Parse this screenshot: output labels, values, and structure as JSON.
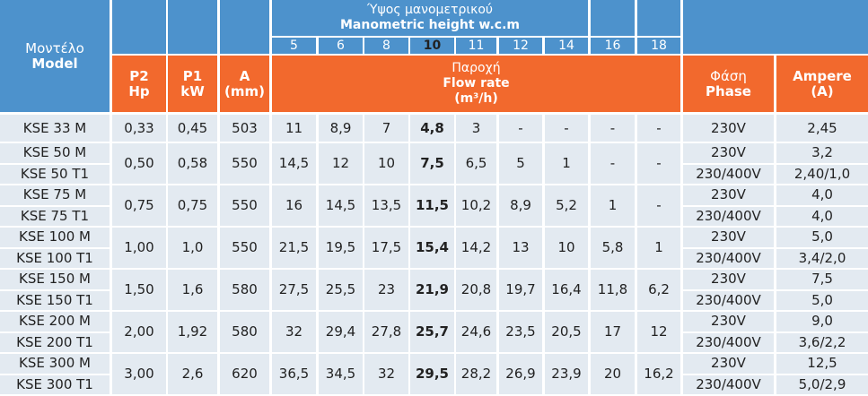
{
  "header": {
    "model": [
      "Μοντέλο",
      "Model"
    ],
    "height": [
      "Ύψος μανομετρικού",
      "Manometric height w.c.m"
    ],
    "heights": [
      5,
      6,
      8,
      10,
      11,
      12,
      14,
      16,
      18
    ],
    "columns": [
      [
        "P2",
        "Hp"
      ],
      [
        "P1",
        "kW"
      ],
      [
        "A",
        "(mm)"
      ]
    ],
    "flow": [
      "Παροχή",
      "Flow rate",
      "(m³/h)"
    ],
    "phase": [
      "Φάση",
      "Phase"
    ],
    "ampere": [
      "Ampere",
      "(A)"
    ]
  },
  "groups": [
    {
      "models": [
        "KSE 33 M"
      ],
      "p2": "0,33",
      "p1": "0,45",
      "a": 503,
      "flow": [
        "11",
        "8,9",
        "7",
        "4,8",
        "3",
        "-",
        "-",
        "-",
        "-"
      ],
      "phases": [
        "230V"
      ],
      "amperes": [
        "2,45"
      ]
    },
    {
      "models": [
        "KSE 50 M",
        "KSE 50 T1"
      ],
      "p2": "0,50",
      "p1": "0,58",
      "a": 550,
      "flow": [
        "14,5",
        "12",
        "10",
        "7,5",
        "6,5",
        "5",
        "1",
        "-",
        "-"
      ],
      "phases": [
        "230V",
        "230/400V"
      ],
      "amperes": [
        "3,2",
        "2,40/1,0"
      ]
    },
    {
      "models": [
        "KSE 75 M",
        "KSE 75 T1"
      ],
      "p2": "0,75",
      "p1": "0,75",
      "a": 550,
      "flow": [
        "16",
        "14,5",
        "13,5",
        "11,5",
        "10,2",
        "8,9",
        "5,2",
        "1",
        "-"
      ],
      "phases": [
        "230V",
        "230/400V"
      ],
      "amperes": [
        "4,0",
        "4,0"
      ]
    },
    {
      "models": [
        "KSE 100 M",
        "KSE 100 T1"
      ],
      "p2": "1,00",
      "p1": "1,0",
      "a": 550,
      "flow": [
        "21,5",
        "19,5",
        "17,5",
        "15,4",
        "14,2",
        "13",
        "10",
        "5,8",
        "1"
      ],
      "phases": [
        "230V",
        "230/400V"
      ],
      "amperes": [
        "5,0",
        "3,4/2,0"
      ]
    },
    {
      "models": [
        "KSE 150 M",
        "KSE 150 T1"
      ],
      "p2": "1,50",
      "p1": "1,6",
      "a": 580,
      "flow": [
        "27,5",
        "25,5",
        "23",
        "21,9",
        "20,8",
        "19,7",
        "16,4",
        "11,8",
        "6,2"
      ],
      "phases": [
        "230V",
        "230/400V"
      ],
      "amperes": [
        "7,5",
        "5,0"
      ]
    },
    {
      "models": [
        "KSE 200 M",
        "KSE 200 T1"
      ],
      "p2": "2,00",
      "p1": "1,92",
      "a": 580,
      "flow": [
        "32",
        "29,4",
        "27,8",
        "25,7",
        "24,6",
        "23,5",
        "20,5",
        "17",
        "12"
      ],
      "phases": [
        "230V",
        "230/400V"
      ],
      "amperes": [
        "9,0",
        "3,6/2,2"
      ]
    },
    {
      "models": [
        "KSE 300 M",
        "KSE 300 T1"
      ],
      "p2": "3,00",
      "p1": "2,6",
      "a": 620,
      "flow": [
        "36,5",
        "34,5",
        "32",
        "29,5",
        "28,2",
        "26,9",
        "23,9",
        "20",
        "16,2"
      ],
      "phases": [
        "230V",
        "230/400V"
      ],
      "amperes": [
        "12,5",
        "5,0/2,9"
      ]
    }
  ]
}
